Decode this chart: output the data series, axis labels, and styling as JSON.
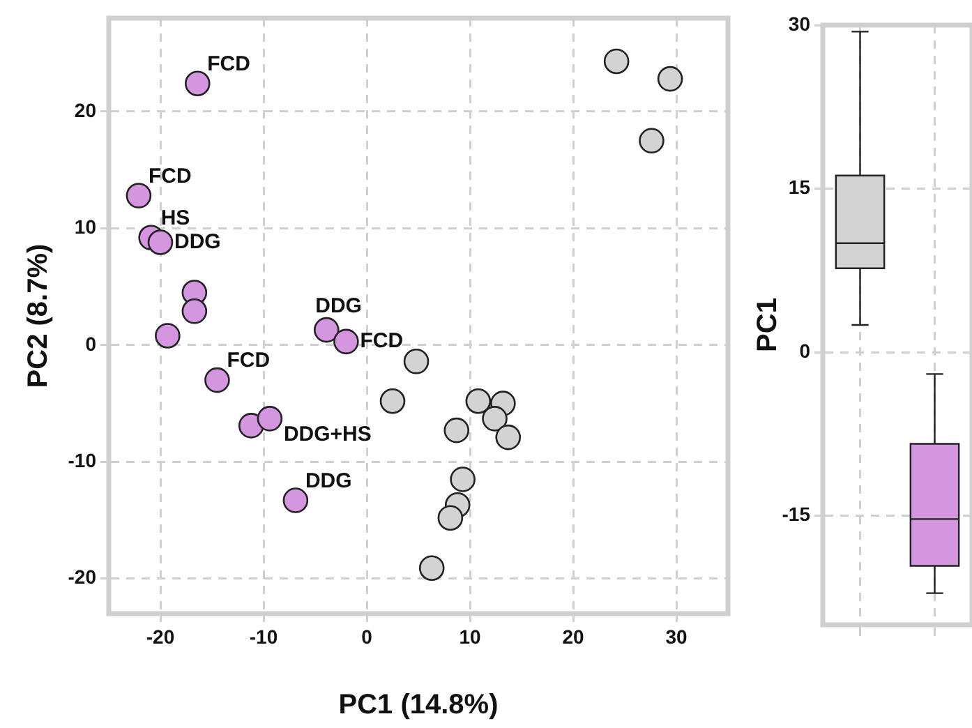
{
  "chart_data": [
    {
      "type": "scatter",
      "xlabel": "PC1 (14.8%)",
      "ylabel": "PC2 (8.7%)",
      "xlim": [
        -25,
        35
      ],
      "ylim": [
        -23,
        28
      ],
      "xticks": [
        -20,
        -10,
        0,
        10,
        20,
        30
      ],
      "yticks": [
        -20,
        -10,
        0,
        10,
        20
      ],
      "grid": true,
      "legend": false,
      "marker": "circle",
      "series": [
        {
          "color": "#d596e0",
          "x": [
            -16.4,
            -22.1,
            -20.9,
            -20.0,
            -16.7,
            -16.7,
            -19.3,
            -3.9,
            -2.0,
            -14.5,
            -11.2,
            -9.4,
            -6.9
          ],
          "values": [
            22.4,
            12.8,
            9.2,
            8.8,
            4.5,
            2.9,
            0.8,
            1.3,
            0.3,
            -3.0,
            -6.9,
            -6.3,
            -13.3
          ]
        },
        {
          "color": "#d3d3d3",
          "x": [
            24.2,
            29.4,
            27.6,
            4.8,
            2.5,
            10.8,
            13.2,
            12.4,
            13.7,
            8.7,
            9.3,
            8.8,
            8.1,
            6.3
          ],
          "values": [
            24.3,
            22.8,
            17.5,
            -1.4,
            -4.8,
            -4.8,
            -5.0,
            -6.3,
            -7.9,
            -7.3,
            -11.5,
            -13.7,
            -14.8,
            -19.1
          ]
        }
      ],
      "annotations": [
        {
          "text": "FCD",
          "x": -16.4,
          "y": 22.4
        },
        {
          "text": "FCD",
          "x": -22.1,
          "y": 12.8
        },
        {
          "text": "HS",
          "x": -20.9,
          "y": 9.2
        },
        {
          "text": "DDG",
          "x": -20.0,
          "y": 8.8
        },
        {
          "text": "DDG",
          "x": -3.9,
          "y": 1.3
        },
        {
          "text": "FCD",
          "x": -2.0,
          "y": 0.3
        },
        {
          "text": "FCD",
          "x": -14.5,
          "y": -3.0
        },
        {
          "text": "DDG+HS",
          "x": -9.4,
          "y": -6.3
        },
        {
          "text": "DDG",
          "x": -6.9,
          "y": -13.3
        }
      ]
    },
    {
      "type": "box",
      "ylabel": "PC1",
      "categories": [
        null,
        null
      ],
      "ylim": [
        -25,
        30
      ],
      "yticks": [
        -15,
        0,
        15,
        30
      ],
      "grid": true,
      "colors": [
        "#d3d3d3",
        "#d596e0"
      ],
      "boxes": [
        {
          "low": 2.5,
          "q1": 7.7,
          "median": 10.0,
          "q3": 16.2,
          "high": 29.4
        },
        {
          "low": -22.1,
          "q1": -19.6,
          "median": -15.3,
          "q3": -8.4,
          "high": -2.0
        }
      ]
    }
  ]
}
